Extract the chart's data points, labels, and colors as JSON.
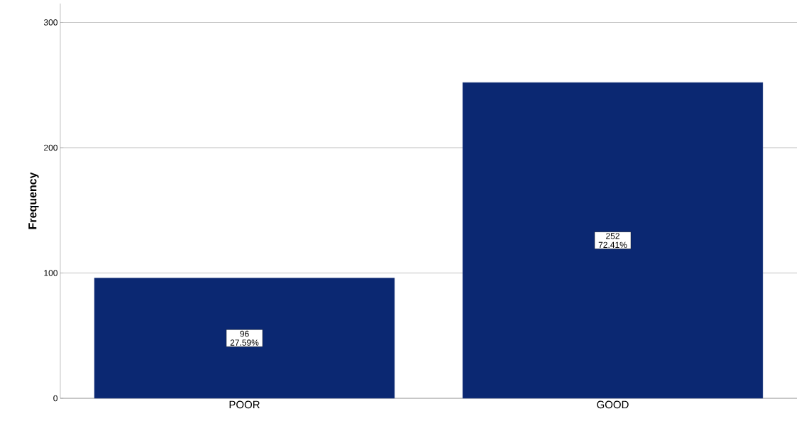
{
  "chart_data": {
    "type": "bar",
    "ylabel": "Frequency",
    "categories": [
      "POOR",
      "GOOD"
    ],
    "values": [
      96,
      252
    ],
    "value_labels": [
      "96 27.59%",
      "252 72.41%"
    ],
    "color": "#0b2872",
    "ylim": [
      0,
      315
    ],
    "yticks": [
      0,
      100,
      200,
      300
    ],
    "grid": "y"
  }
}
